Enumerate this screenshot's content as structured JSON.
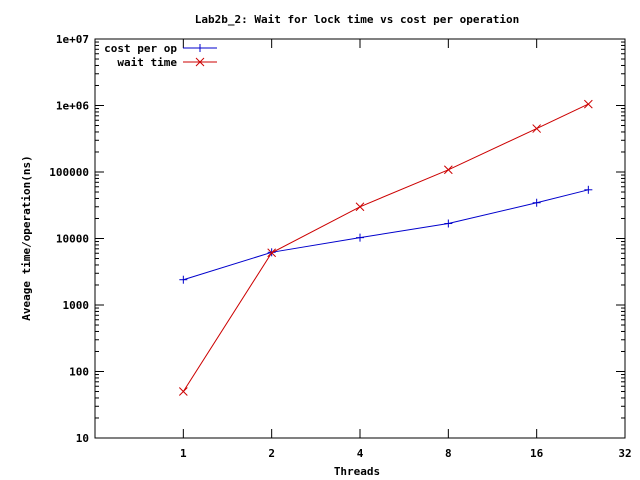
{
  "chart_data": {
    "type": "line",
    "title": "Lab2b_2: Wait for lock time vs cost per operation",
    "xlabel": "Threads",
    "ylabel": "Aveage time/operation(ns)",
    "xscale": "log2",
    "yscale": "log10",
    "xlim": [
      0.5,
      32
    ],
    "ylim": [
      10,
      10000000
    ],
    "xticks": [
      1,
      2,
      4,
      8,
      16,
      32
    ],
    "xtick_labels": [
      "1",
      "2",
      "4",
      "8",
      "16",
      "32"
    ],
    "yticks": [
      10,
      100,
      1000,
      10000,
      100000,
      1000000,
      10000000
    ],
    "ytick_labels": [
      "10",
      "100",
      "1000",
      "10000",
      "100000",
      "1e+06",
      "1e+07"
    ],
    "legend_position": "top-left",
    "grid": false,
    "x": [
      1,
      2,
      4,
      8,
      16,
      24
    ],
    "series": [
      {
        "name": "cost per op",
        "color": "#0000cc",
        "marker": "plus",
        "values": [
          2400,
          6200,
          10300,
          16800,
          34500,
          54000
        ]
      },
      {
        "name": "wait time",
        "color": "#cc0000",
        "marker": "cross",
        "values": [
          50,
          6100,
          30000,
          108000,
          450000,
          1050000
        ]
      }
    ]
  }
}
